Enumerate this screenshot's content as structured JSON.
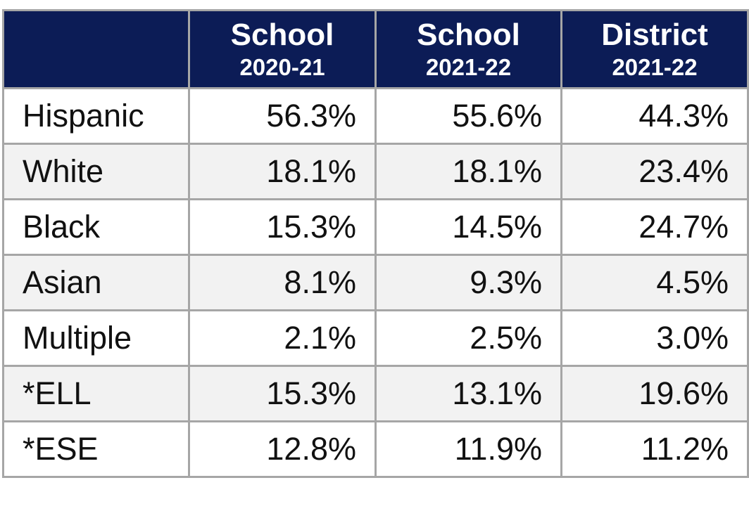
{
  "table": {
    "columns": [
      {
        "title": "School",
        "subtitle": "2020-21"
      },
      {
        "title": "School",
        "subtitle": "2021-22"
      },
      {
        "title": "District",
        "subtitle": "2021-22"
      }
    ],
    "rows": [
      [
        "Hispanic",
        "56.3%",
        "55.6%",
        "44.3%"
      ],
      [
        "White",
        "18.1%",
        "18.1%",
        "23.4%"
      ],
      [
        "Black",
        "15.3%",
        "14.5%",
        "24.7%"
      ],
      [
        "Asian",
        "8.1%",
        "9.3%",
        "4.5%"
      ],
      [
        "Multiple",
        "2.1%",
        "2.5%",
        "3.0%"
      ],
      [
        "*ELL",
        "15.3%",
        "13.1%",
        "19.6%"
      ],
      [
        "*ESE",
        "12.8%",
        "11.9%",
        "11.2%"
      ]
    ]
  }
}
